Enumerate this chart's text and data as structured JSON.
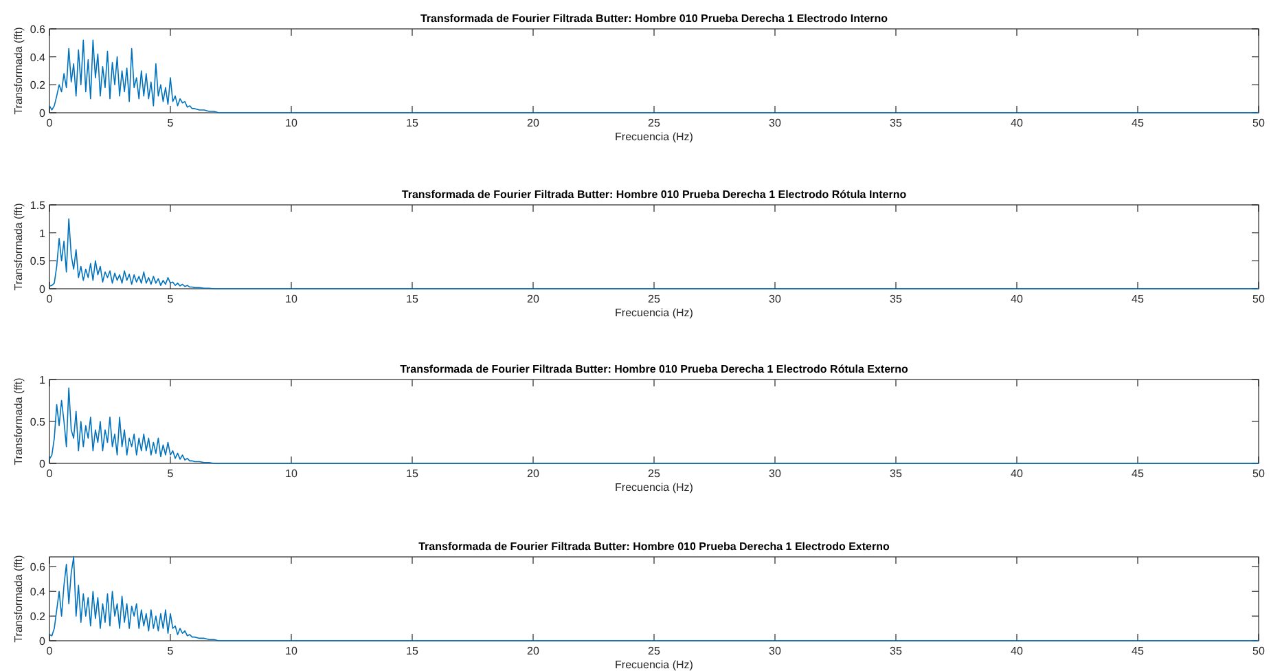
{
  "chart_data": [
    {
      "type": "line",
      "title": "Transformada de Fourier Filtrada Butter: Hombre 010 Prueba Derecha 1 Electrodo Interno",
      "xlabel": "Frecuencia (Hz)",
      "ylabel": "Transformada (fft)",
      "xlim": [
        0,
        50
      ],
      "xticks": [
        0,
        5,
        10,
        15,
        20,
        25,
        30,
        35,
        40,
        45,
        50
      ],
      "ylim": [
        0,
        0.6
      ],
      "yticks": [
        0,
        0.2,
        0.4,
        0.6
      ],
      "grid": false,
      "x": [
        0,
        0.1,
        0.2,
        0.3,
        0.4,
        0.5,
        0.6,
        0.7,
        0.8,
        0.9,
        1,
        1.1,
        1.2,
        1.3,
        1.4,
        1.5,
        1.6,
        1.7,
        1.8,
        1.9,
        2,
        2.1,
        2.2,
        2.3,
        2.4,
        2.5,
        2.6,
        2.7,
        2.8,
        2.9,
        3,
        3.1,
        3.2,
        3.3,
        3.4,
        3.5,
        3.6,
        3.7,
        3.8,
        3.9,
        4,
        4.1,
        4.2,
        4.3,
        4.4,
        4.5,
        4.6,
        4.7,
        4.8,
        4.9,
        5,
        5.1,
        5.2,
        5.3,
        5.4,
        5.5,
        5.6,
        5.7,
        5.8,
        5.9,
        6,
        6.2,
        6.4,
        6.6,
        6.8,
        7,
        7.5,
        8,
        10,
        50
      ],
      "series": [
        {
          "color": "#0072bd",
          "values": [
            0.05,
            0.02,
            0.05,
            0.12,
            0.2,
            0.15,
            0.28,
            0.18,
            0.46,
            0.22,
            0.35,
            0.12,
            0.45,
            0.2,
            0.52,
            0.15,
            0.38,
            0.1,
            0.52,
            0.25,
            0.42,
            0.12,
            0.33,
            0.18,
            0.44,
            0.1,
            0.36,
            0.2,
            0.4,
            0.12,
            0.3,
            0.15,
            0.32,
            0.08,
            0.46,
            0.18,
            0.25,
            0.1,
            0.3,
            0.12,
            0.28,
            0.1,
            0.22,
            0.05,
            0.35,
            0.12,
            0.2,
            0.08,
            0.18,
            0.06,
            0.25,
            0.08,
            0.12,
            0.05,
            0.1,
            0.07,
            0.08,
            0.04,
            0.05,
            0.03,
            0.03,
            0.02,
            0.02,
            0.01,
            0.01,
            0,
            0,
            0,
            0,
            0
          ]
        }
      ]
    },
    {
      "type": "line",
      "title": "Transformada de Fourier Filtrada Butter: Hombre 010 Prueba Derecha 1 Electrodo Rótula Interno",
      "xlabel": "Frecuencia (Hz)",
      "ylabel": "Transformada (fft)",
      "xlim": [
        0,
        50
      ],
      "xticks": [
        0,
        5,
        10,
        15,
        20,
        25,
        30,
        35,
        40,
        45,
        50
      ],
      "ylim": [
        0,
        1.5
      ],
      "yticks": [
        0,
        0.5,
        1,
        1.5
      ],
      "grid": false,
      "x": [
        0,
        0.1,
        0.2,
        0.3,
        0.4,
        0.5,
        0.6,
        0.7,
        0.8,
        0.9,
        1,
        1.1,
        1.2,
        1.3,
        1.4,
        1.5,
        1.6,
        1.7,
        1.8,
        1.9,
        2,
        2.1,
        2.2,
        2.3,
        2.4,
        2.5,
        2.6,
        2.7,
        2.8,
        2.9,
        3,
        3.1,
        3.2,
        3.3,
        3.4,
        3.5,
        3.6,
        3.7,
        3.8,
        3.9,
        4,
        4.1,
        4.2,
        4.3,
        4.4,
        4.5,
        4.6,
        4.7,
        4.8,
        4.9,
        5,
        5.1,
        5.2,
        5.3,
        5.4,
        5.5,
        5.6,
        5.7,
        5.8,
        5.9,
        6,
        6.2,
        6.4,
        6.6,
        6.8,
        7,
        7.5,
        8,
        10,
        50
      ],
      "series": [
        {
          "color": "#0072bd",
          "values": [
            0.05,
            0.06,
            0.1,
            0.4,
            0.9,
            0.5,
            0.85,
            0.3,
            1.25,
            0.6,
            0.35,
            0.7,
            0.2,
            0.4,
            0.15,
            0.35,
            0.2,
            0.45,
            0.15,
            0.5,
            0.25,
            0.4,
            0.12,
            0.3,
            0.2,
            0.32,
            0.1,
            0.28,
            0.15,
            0.25,
            0.1,
            0.32,
            0.15,
            0.26,
            0.08,
            0.25,
            0.12,
            0.22,
            0.1,
            0.3,
            0.1,
            0.2,
            0.08,
            0.22,
            0.1,
            0.18,
            0.06,
            0.15,
            0.08,
            0.2,
            0.1,
            0.12,
            0.06,
            0.1,
            0.05,
            0.08,
            0.04,
            0.06,
            0.03,
            0.03,
            0.02,
            0.02,
            0.01,
            0.01,
            0,
            0,
            0,
            0,
            0,
            0
          ]
        }
      ]
    },
    {
      "type": "line",
      "title": "Transformada de Fourier Filtrada Butter: Hombre 010 Prueba Derecha 1 Electrodo Rótula Externo",
      "xlabel": "Frecuencia (Hz)",
      "ylabel": "Transformada (fft)",
      "xlim": [
        0,
        50
      ],
      "xticks": [
        0,
        5,
        10,
        15,
        20,
        25,
        30,
        35,
        40,
        45,
        50
      ],
      "ylim": [
        0,
        1
      ],
      "yticks": [
        0,
        0.5,
        1
      ],
      "grid": false,
      "x": [
        0,
        0.1,
        0.2,
        0.3,
        0.4,
        0.5,
        0.6,
        0.7,
        0.8,
        0.9,
        1,
        1.1,
        1.2,
        1.3,
        1.4,
        1.5,
        1.6,
        1.7,
        1.8,
        1.9,
        2,
        2.1,
        2.2,
        2.3,
        2.4,
        2.5,
        2.6,
        2.7,
        2.8,
        2.9,
        3,
        3.1,
        3.2,
        3.3,
        3.4,
        3.5,
        3.6,
        3.7,
        3.8,
        3.9,
        4,
        4.1,
        4.2,
        4.3,
        4.4,
        4.5,
        4.6,
        4.7,
        4.8,
        4.9,
        5,
        5.1,
        5.2,
        5.3,
        5.4,
        5.5,
        5.6,
        5.7,
        5.8,
        5.9,
        6,
        6.2,
        6.4,
        6.6,
        6.8,
        7,
        7.5,
        8,
        10,
        50
      ],
      "series": [
        {
          "color": "#0072bd",
          "values": [
            0.05,
            0.1,
            0.3,
            0.7,
            0.45,
            0.75,
            0.5,
            0.2,
            0.9,
            0.4,
            0.3,
            0.62,
            0.15,
            0.5,
            0.2,
            0.45,
            0.3,
            0.55,
            0.15,
            0.4,
            0.25,
            0.5,
            0.15,
            0.4,
            0.25,
            0.55,
            0.2,
            0.35,
            0.1,
            0.55,
            0.2,
            0.4,
            0.1,
            0.3,
            0.2,
            0.35,
            0.1,
            0.3,
            0.15,
            0.35,
            0.15,
            0.3,
            0.1,
            0.25,
            0.12,
            0.3,
            0.08,
            0.22,
            0.1,
            0.25,
            0.1,
            0.15,
            0.06,
            0.12,
            0.05,
            0.1,
            0.04,
            0.06,
            0.03,
            0.03,
            0.02,
            0.02,
            0.01,
            0.01,
            0,
            0,
            0,
            0,
            0,
            0
          ]
        }
      ]
    },
    {
      "type": "line",
      "title": "Transformada de Fourier Filtrada Butter: Hombre 010 Prueba Derecha 1 Electrodo Externo",
      "xlabel": "Frecuencia (Hz)",
      "ylabel": "Transformada (fft)",
      "xlim": [
        0,
        50
      ],
      "xticks": [
        0,
        5,
        10,
        15,
        20,
        25,
        30,
        35,
        40,
        45,
        50
      ],
      "ylim": [
        0,
        0.68
      ],
      "yticks": [
        0,
        0.2,
        0.4,
        0.6
      ],
      "grid": false,
      "x": [
        0,
        0.1,
        0.2,
        0.3,
        0.4,
        0.5,
        0.6,
        0.7,
        0.8,
        0.9,
        1,
        1.1,
        1.2,
        1.3,
        1.4,
        1.5,
        1.6,
        1.7,
        1.8,
        1.9,
        2,
        2.1,
        2.2,
        2.3,
        2.4,
        2.5,
        2.6,
        2.7,
        2.8,
        2.9,
        3,
        3.1,
        3.2,
        3.3,
        3.4,
        3.5,
        3.6,
        3.7,
        3.8,
        3.9,
        4,
        4.1,
        4.2,
        4.3,
        4.4,
        4.5,
        4.6,
        4.7,
        4.8,
        4.9,
        5,
        5.1,
        5.2,
        5.3,
        5.4,
        5.5,
        5.6,
        5.7,
        5.8,
        5.9,
        6,
        6.2,
        6.4,
        6.6,
        6.8,
        7,
        7.5,
        8,
        10,
        50
      ],
      "series": [
        {
          "color": "#0072bd",
          "values": [
            0.05,
            0.04,
            0.1,
            0.25,
            0.4,
            0.2,
            0.45,
            0.62,
            0.3,
            0.55,
            0.68,
            0.2,
            0.45,
            0.15,
            0.38,
            0.2,
            0.35,
            0.12,
            0.4,
            0.18,
            0.35,
            0.1,
            0.3,
            0.15,
            0.38,
            0.12,
            0.4,
            0.2,
            0.3,
            0.1,
            0.36,
            0.15,
            0.3,
            0.1,
            0.28,
            0.2,
            0.3,
            0.1,
            0.25,
            0.12,
            0.22,
            0.08,
            0.25,
            0.1,
            0.2,
            0.08,
            0.22,
            0.1,
            0.25,
            0.06,
            0.22,
            0.1,
            0.12,
            0.05,
            0.1,
            0.06,
            0.08,
            0.04,
            0.05,
            0.03,
            0.03,
            0.02,
            0.02,
            0.01,
            0.01,
            0,
            0,
            0,
            0,
            0
          ]
        }
      ]
    }
  ]
}
